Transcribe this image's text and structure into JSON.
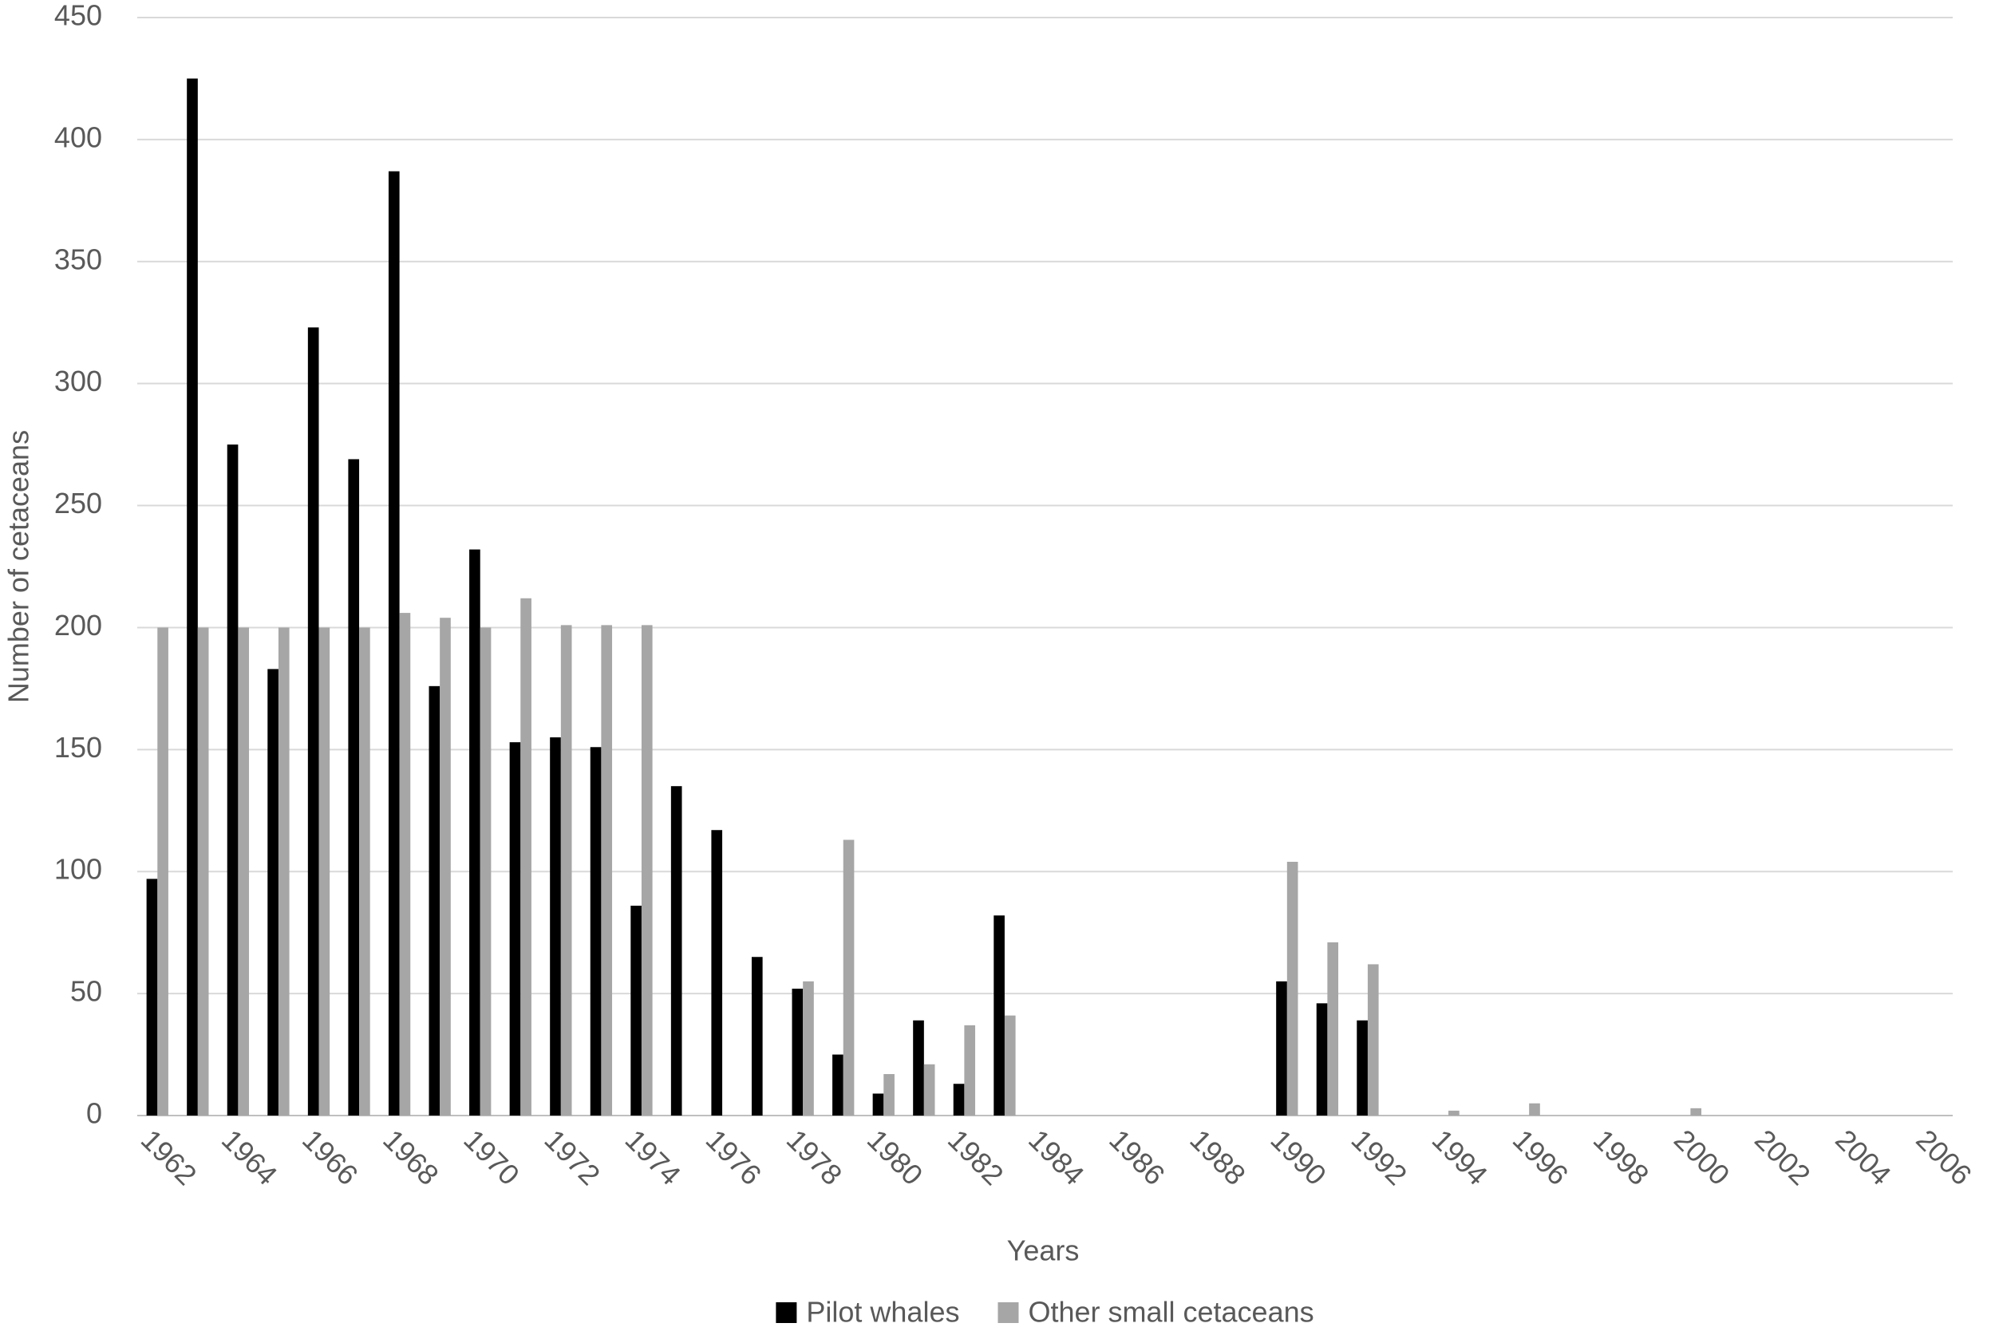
{
  "chart_data": {
    "type": "bar",
    "x_label": "Years",
    "y_label": "Number of cetaceans",
    "categories": [
      "1962",
      null,
      "1964",
      null,
      "1966",
      null,
      "1968",
      null,
      "1970",
      null,
      "1972",
      null,
      "1974",
      null,
      "1976",
      null,
      "1978",
      null,
      "1980",
      null,
      "1982",
      null,
      "1984",
      null,
      "1986",
      null,
      "1988",
      null,
      "1990",
      null,
      "1992",
      null,
      "1994",
      null,
      "1996",
      null,
      "1998",
      null,
      "2000",
      null,
      "2002",
      null,
      "2004",
      null,
      "2006"
    ],
    "series": [
      {
        "name": "Pilot whales",
        "color": "#000000",
        "values": [
          97,
          425,
          275,
          183,
          323,
          269,
          387,
          176,
          232,
          153,
          155,
          151,
          86,
          135,
          117,
          65,
          52,
          25,
          9,
          39,
          13,
          82,
          0,
          0,
          0,
          0,
          0,
          0,
          55,
          46,
          39,
          0,
          0,
          0,
          0,
          0,
          0,
          0,
          0,
          0,
          0,
          0,
          0,
          0,
          0
        ]
      },
      {
        "name": "Other small cetaceans",
        "color": "#a6a6a6",
        "values": [
          200,
          200,
          200,
          200,
          200,
          200,
          206,
          204,
          200,
          212,
          201,
          201,
          201,
          0,
          0,
          0,
          55,
          113,
          17,
          21,
          37,
          41,
          0,
          0,
          0,
          0,
          0,
          0,
          104,
          71,
          62,
          0,
          2,
          0,
          5,
          0,
          0,
          0,
          3,
          0,
          0,
          0,
          0,
          0,
          0
        ]
      }
    ],
    "ylim": [
      0,
      450
    ],
    "yticks": [
      0,
      50,
      100,
      150,
      200,
      250,
      300,
      350,
      400,
      450
    ],
    "grid": true,
    "legend": "bottom"
  }
}
